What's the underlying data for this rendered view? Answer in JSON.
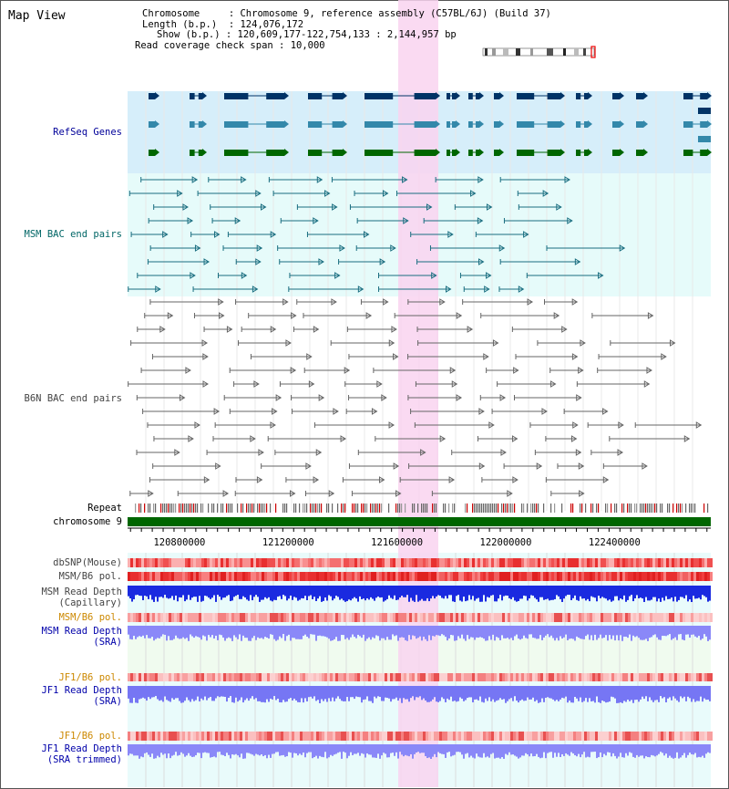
{
  "view_title": "Map View",
  "info": {
    "chromosome_label": "Chromosome",
    "chromosome_value": "Chromosome 9, reference assembly (C57BL/6J) (Build 37)",
    "length_label": "Length (b.p.)",
    "length_value": "124,076,172",
    "show_label": "Show (b.p.)",
    "show_value": "120,609,177-122,754,133 : 2,144,957 bp",
    "coverage_label": "Read coverage check span",
    "coverage_value": "10,000"
  },
  "tracks": {
    "refseq": "RefSeq Genes",
    "msm_bac": "MSM BAC end pairs",
    "b6n_bac": "B6N BAC end pairs",
    "repeat": "Repeat",
    "chromosome": "chromosome 9",
    "dbsnp": "dbSNP(Mouse)",
    "msm_b6_pol_1": "MSM/B6 pol.",
    "msm_depth_cap_1": "MSM Read Depth",
    "msm_depth_cap_2": "(Capillary)",
    "msm_b6_pol_2": "MSM/B6 pol.",
    "msm_depth_sra_1": "MSM Read Depth",
    "msm_depth_sra_2": "(SRA)",
    "jf1_b6_pol_1": "JF1/B6 pol.",
    "jf1_depth_sra_1": "JF1 Read Depth",
    "jf1_depth_sra_2": "(SRA)",
    "jf1_b6_pol_2": "JF1/B6 pol.",
    "jf1_depth_trim_1": "JF1 Read Depth",
    "jf1_depth_trim_2": "(SRA trimmed)"
  },
  "axis": {
    "range": [
      120609177,
      122754133
    ],
    "ticks": [
      "120800000",
      "121200000",
      "121600000",
      "122000000",
      "122400000"
    ]
  },
  "colors": {
    "refseq_label": "#000099",
    "msm_label": "#006666",
    "b6n_label": "#444444",
    "sra_label": "#0000aa",
    "pol_orange": "#cc8800",
    "gene_dark": "#003366",
    "gene_mid": "#3388aa",
    "gene_green": "#006600",
    "highlight": "#f9d4f0",
    "chromosome_bar": "#006600"
  }
}
